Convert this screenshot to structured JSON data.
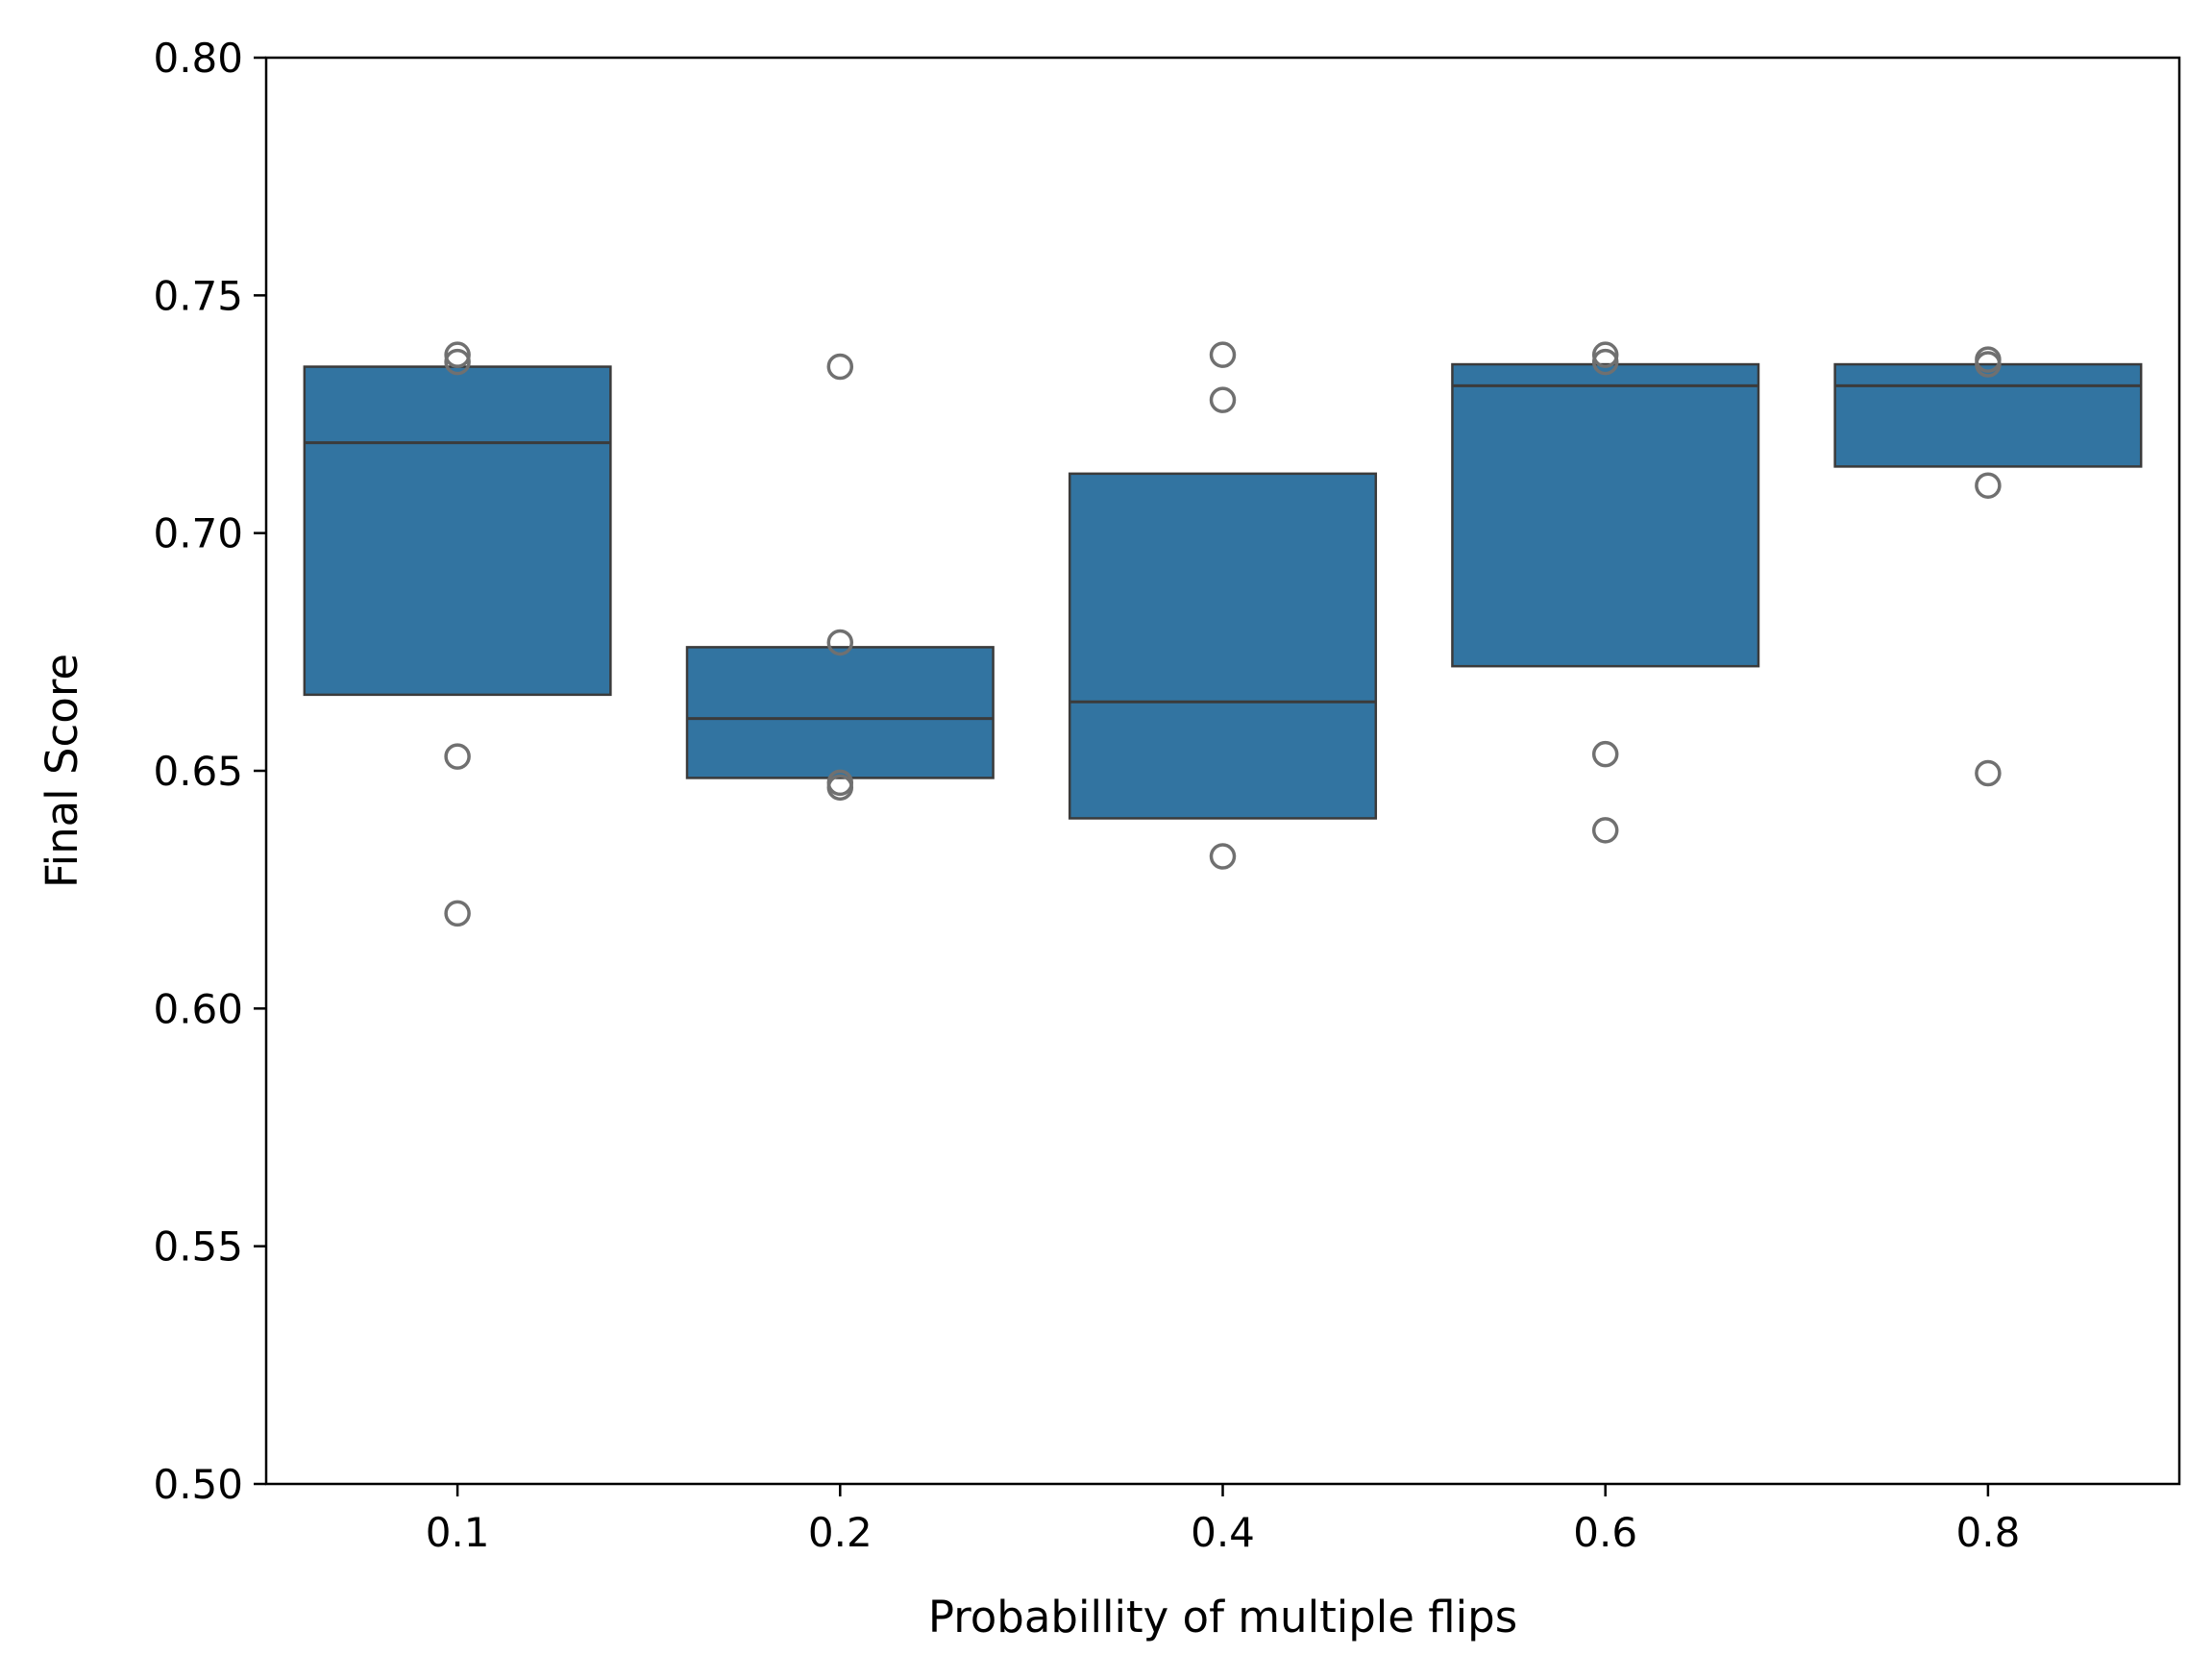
{
  "chart_data": {
    "type": "box",
    "xlabel": "Probabillity of multiple flips",
    "ylabel": "Final Score",
    "title": "",
    "categories": [
      "0.1",
      "0.2",
      "0.4",
      "0.6",
      "0.8"
    ],
    "ylim": [
      0.5,
      0.8
    ],
    "yticks": [
      "0.50",
      "0.55",
      "0.60",
      "0.65",
      "0.70",
      "0.75",
      "0.80"
    ],
    "grid": false,
    "box_color": "#3274a1",
    "edge_color": "#3b3b3b",
    "boxes": [
      {
        "category": "0.1",
        "q1": 0.666,
        "median": 0.719,
        "q3": 0.735,
        "outliers": [
          0.7375,
          0.736,
          0.653,
          0.62
        ]
      },
      {
        "category": "0.2",
        "q1": 0.6485,
        "median": 0.661,
        "q3": 0.676,
        "outliers": [
          0.735,
          0.677,
          0.6475,
          0.6465
        ]
      },
      {
        "category": "0.4",
        "q1": 0.64,
        "median": 0.6645,
        "q3": 0.7125,
        "outliers": [
          0.7375,
          0.728,
          0.632
        ]
      },
      {
        "category": "0.6",
        "q1": 0.672,
        "median": 0.731,
        "q3": 0.7355,
        "outliers": [
          0.7375,
          0.736,
          0.6535,
          0.6375
        ]
      },
      {
        "category": "0.8",
        "q1": 0.714,
        "median": 0.731,
        "q3": 0.7355,
        "outliers": [
          0.7365,
          0.7355,
          0.71,
          0.6495
        ]
      }
    ]
  }
}
